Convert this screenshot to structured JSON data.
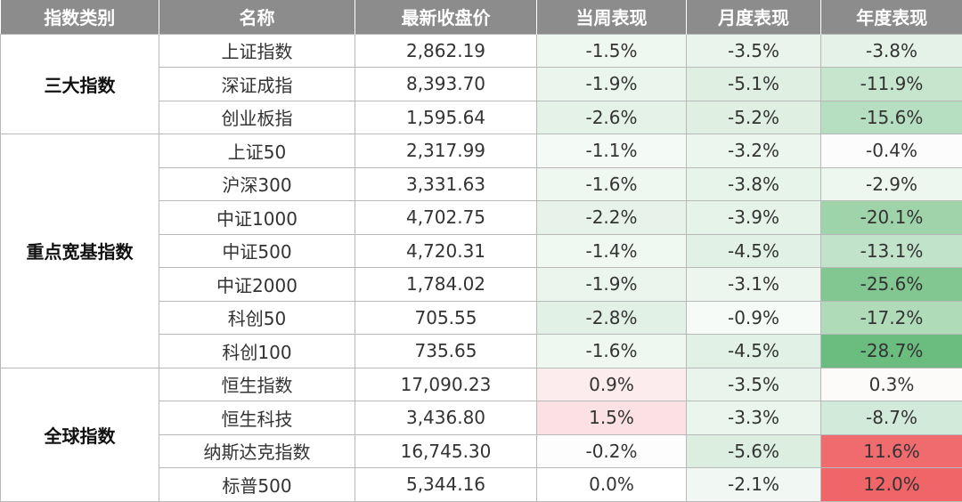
{
  "headers": [
    "指数类别",
    "名称",
    "最新收盘价",
    "当周表现",
    "月度表现",
    "年度表现"
  ],
  "groups": [
    {
      "category": "三大指数",
      "rows": [
        {
          "name": "上证指数",
          "close": "2,862.19",
          "week": "-1.5%",
          "month": "-3.5%",
          "year": "-3.8%",
          "colors": {
            "week": "#eff7f1",
            "month": "#e9f5ec",
            "year": "#e4f2e7"
          }
        },
        {
          "name": "深证成指",
          "close": "8,393.70",
          "week": "-1.9%",
          "month": "-5.1%",
          "year": "-11.9%",
          "colors": {
            "week": "#eaf5ed",
            "month": "#dff0e3",
            "year": "#c6e5cd"
          }
        },
        {
          "name": "创业板指",
          "close": "1,595.64",
          "week": "-2.6%",
          "month": "-5.2%",
          "year": "-15.6%",
          "colors": {
            "week": "#e4f2e7",
            "month": "#dff0e3",
            "year": "#b6dec0"
          }
        }
      ]
    },
    {
      "category": "重点宽基指数",
      "rows": [
        {
          "name": "上证50",
          "close": "2,317.99",
          "week": "-1.1%",
          "month": "-3.2%",
          "year": "-0.4%",
          "colors": {
            "week": "#f4faf5",
            "month": "#ebf6ee",
            "year": "#fbfcfb"
          }
        },
        {
          "name": "沪深300",
          "close": "3,331.63",
          "week": "-1.6%",
          "month": "-3.8%",
          "year": "-2.9%",
          "colors": {
            "week": "#eef7f0",
            "month": "#e7f4ea",
            "year": "#edf7ef"
          }
        },
        {
          "name": "中证1000",
          "close": "4,702.75",
          "week": "-2.2%",
          "month": "-3.9%",
          "year": "-20.1%",
          "colors": {
            "week": "#e7f3ea",
            "month": "#e6f3e9",
            "year": "#9fd4ab"
          }
        },
        {
          "name": "中证500",
          "close": "4,720.31",
          "week": "-1.4%",
          "month": "-4.5%",
          "year": "-13.1%",
          "colors": {
            "week": "#f0f8f2",
            "month": "#e2f1e6",
            "year": "#c1e3c9"
          }
        },
        {
          "name": "中证2000",
          "close": "1,784.02",
          "week": "-1.9%",
          "month": "-3.1%",
          "year": "-25.6%",
          "colors": {
            "week": "#eaf5ed",
            "month": "#ecf6ee",
            "year": "#82c792"
          }
        },
        {
          "name": "科创50",
          "close": "705.55",
          "week": "-2.8%",
          "month": "-0.9%",
          "year": "-17.2%",
          "colors": {
            "week": "#e2f1e6",
            "month": "#f6fbf7",
            "year": "#afdbb9"
          }
        },
        {
          "name": "科创100",
          "close": "735.65",
          "week": "-1.6%",
          "month": "-4.5%",
          "year": "-28.7%",
          "colors": {
            "week": "#eef7f0",
            "month": "#e2f1e6",
            "year": "#6abd7f"
          }
        }
      ]
    },
    {
      "category": "全球指数",
      "rows": [
        {
          "name": "恒生指数",
          "close": "17,090.23",
          "week": "0.9%",
          "month": "-3.5%",
          "year": "0.3%",
          "colors": {
            "week": "#fcecee",
            "month": "#e9f5ec",
            "year": "#fdfafa"
          }
        },
        {
          "name": "恒生科技",
          "close": "3,436.80",
          "week": "1.5%",
          "month": "-3.3%",
          "year": "-8.7%",
          "colors": {
            "week": "#fbe1e3",
            "month": "#eaf5ed",
            "year": "#d2eada"
          }
        },
        {
          "name": "纳斯达克指数",
          "close": "16,745.30",
          "week": "-0.2%",
          "month": "-5.6%",
          "year": "11.6%",
          "colors": {
            "week": "#fcfdfc",
            "month": "#dbeee0",
            "year": "#f06b6e"
          }
        },
        {
          "name": "标普500",
          "close": "5,344.16",
          "week": "0.0%",
          "month": "-2.1%",
          "year": "12.0%",
          "colors": {
            "week": "#ffffff",
            "month": "#f1f8f3",
            "year": "#ef6568"
          }
        }
      ]
    }
  ]
}
